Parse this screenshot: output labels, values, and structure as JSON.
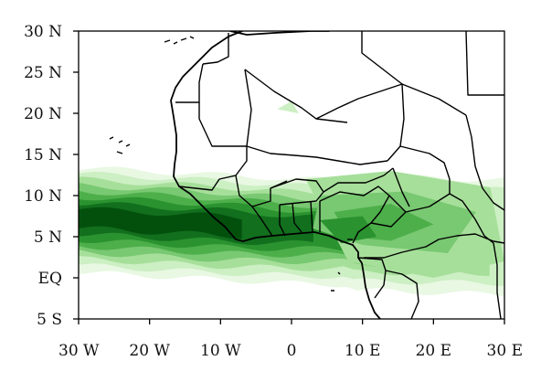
{
  "chart_data": {
    "type": "heatmap",
    "title": "",
    "projection": "lat-lon",
    "extent": {
      "lon": [
        -30,
        30
      ],
      "lat": [
        -5,
        30
      ]
    },
    "x_ticks": [
      {
        "value": -30,
        "label": "30 W"
      },
      {
        "value": -20,
        "label": "20 W"
      },
      {
        "value": -10,
        "label": "10 W"
      },
      {
        "value": 0,
        "label": "0"
      },
      {
        "value": 10,
        "label": "10 E"
      },
      {
        "value": 20,
        "label": "20 E"
      },
      {
        "value": 30,
        "label": "30 E"
      }
    ],
    "y_ticks": [
      {
        "value": 30,
        "label": "30 N"
      },
      {
        "value": 25,
        "label": "25 N"
      },
      {
        "value": 20,
        "label": "20 N"
      },
      {
        "value": 15,
        "label": "15 N"
      },
      {
        "value": 10,
        "label": "10 N"
      },
      {
        "value": 5,
        "label": "5 N"
      },
      {
        "value": 0,
        "label": "EQ"
      },
      {
        "value": -5,
        "label": "5 S"
      }
    ],
    "shading_levels": [
      "#e8f8e2",
      "#ccefc3",
      "#a6df9a",
      "#79c872",
      "#4daf4a",
      "#2a922f",
      "#126f1d",
      "#03500d"
    ],
    "grid": false,
    "legend": "none",
    "overlay": "coastlines and country borders",
    "pattern": "zonal band of green shading along about 3-12 N, darkest over the Atlantic near 30-15 W and the Gulf of Guinea, fading northward to about 15 N and southward to about 3 S"
  }
}
